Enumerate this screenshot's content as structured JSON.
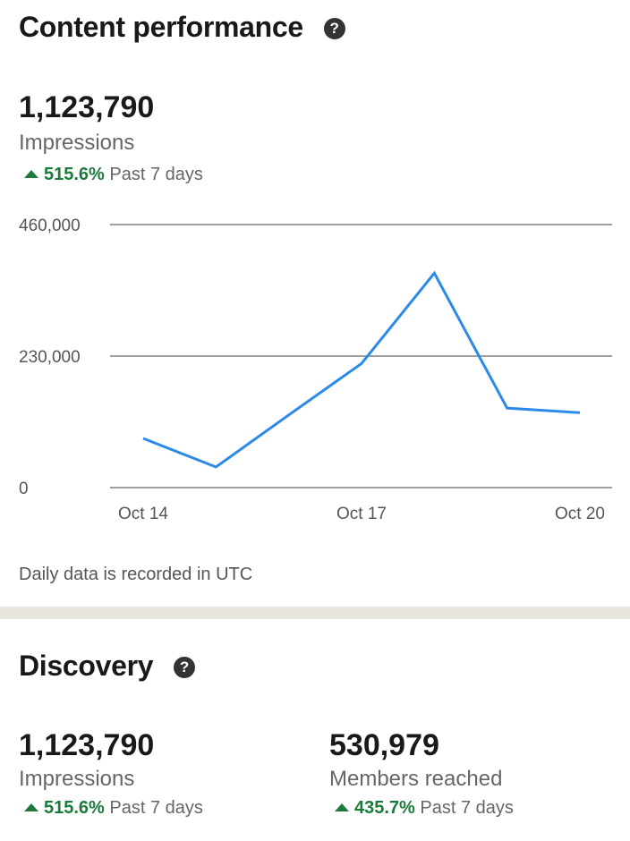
{
  "content_performance": {
    "title": "Content performance",
    "help_icon": "question-circle-icon",
    "total": "1,123,790",
    "metric_label": "Impressions",
    "change_pct": "515.6%",
    "change_period": "Past 7 days",
    "note": "Daily data is recorded in UTC"
  },
  "chart_data": {
    "type": "line",
    "title": "",
    "xlabel": "",
    "ylabel": "",
    "x": [
      "Oct 14",
      "Oct 15",
      "Oct 16",
      "Oct 17",
      "Oct 18",
      "Oct 19",
      "Oct 20"
    ],
    "x_tick_labels": [
      "Oct 14",
      "Oct 17",
      "Oct 20"
    ],
    "y_tick_labels": [
      "460,000",
      "230,000",
      "0"
    ],
    "y_ticks": [
      460000,
      230000,
      0
    ],
    "ylim": [
      0,
      460000
    ],
    "grid": true,
    "series": [
      {
        "values": [
          86000,
          36000,
          127000,
          217000,
          375000,
          139000,
          131000
        ],
        "color": "#2b8ae8"
      }
    ]
  },
  "discovery": {
    "title": "Discovery",
    "help_icon": "question-circle-icon",
    "stats": [
      {
        "value": "1,123,790",
        "label": "Impressions",
        "change_pct": "515.6%",
        "change_period": "Past 7 days"
      },
      {
        "value": "530,979",
        "label": "Members reached",
        "change_pct": "435.7%",
        "change_period": "Past 7 days"
      }
    ]
  },
  "colors": {
    "positive": "#1c7a3c",
    "line": "#2b8ae8",
    "separator": "#e9e5df"
  }
}
